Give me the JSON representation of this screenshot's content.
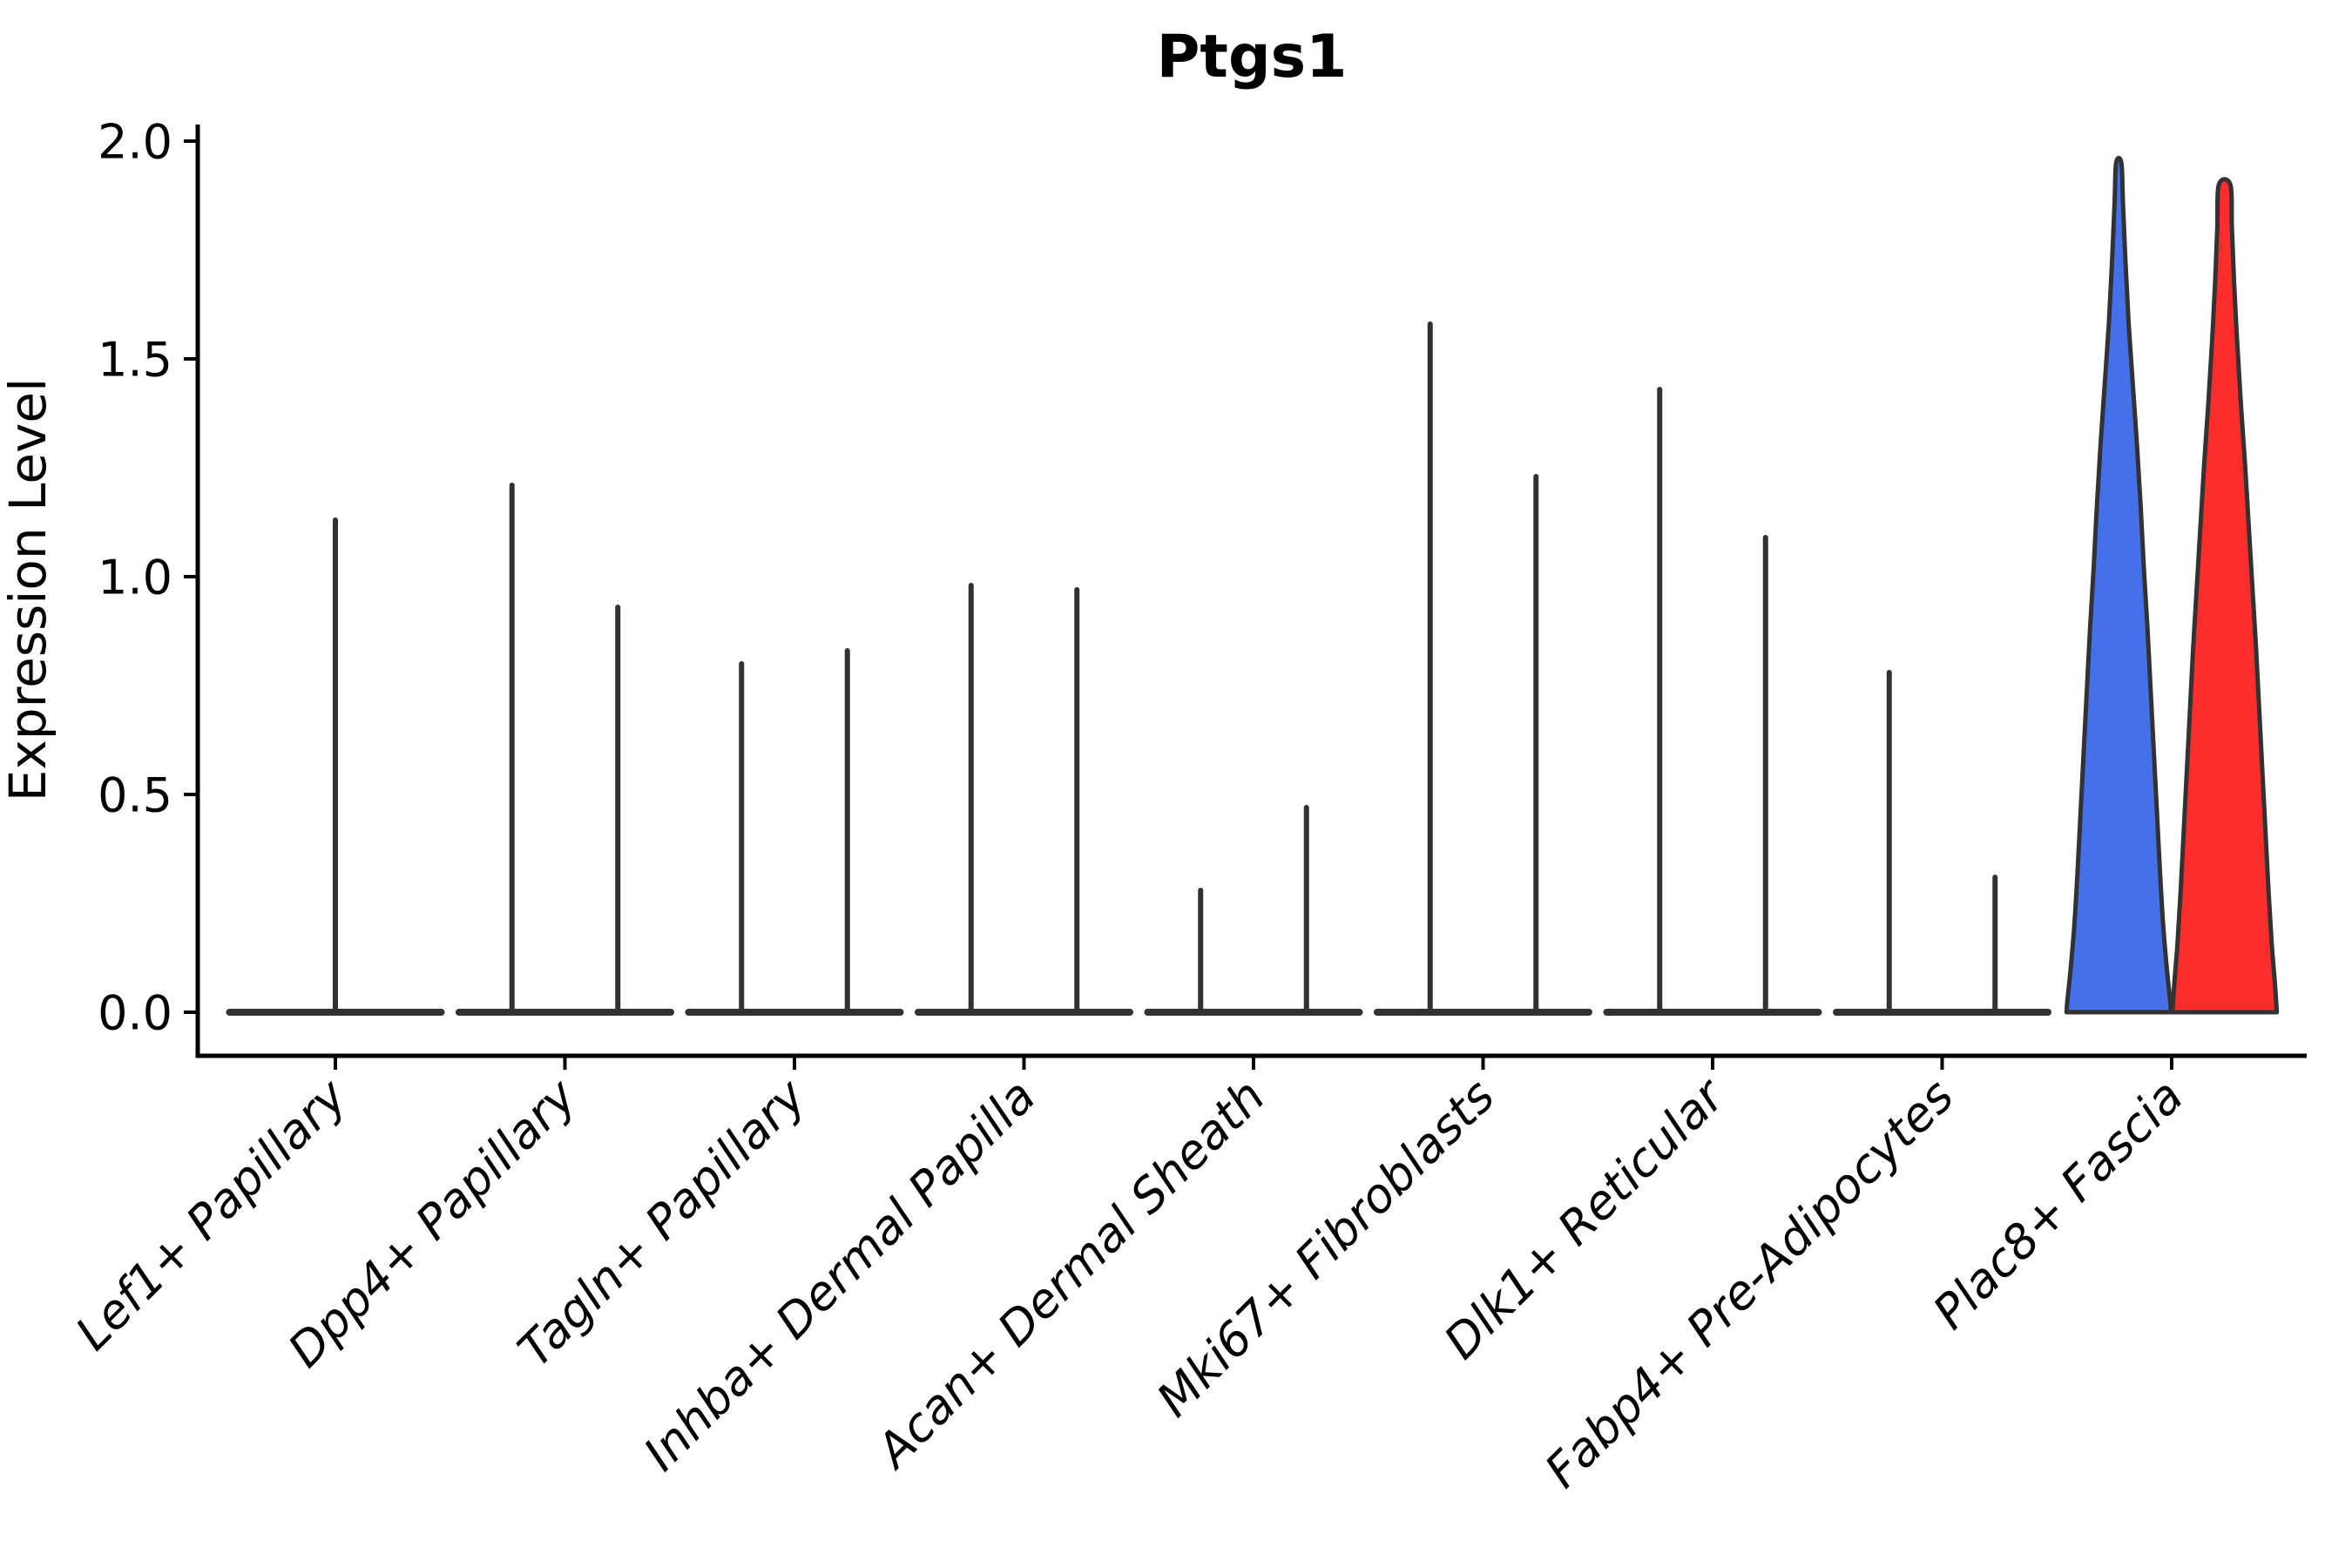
{
  "chart_data": {
    "type": "violin",
    "title": "Ptgs1",
    "ylabel": "Expression Level",
    "ylim": [
      0,
      2.0
    ],
    "yticks": [
      "0.0",
      "0.5",
      "1.0",
      "1.5",
      "2.0"
    ],
    "grid": false,
    "legend": "none",
    "x_label_rotation_deg": 45,
    "x_label_style": "italic",
    "colors": {
      "outline": "#323232",
      "axis": "#000000",
      "blue_violin": "#4470EA",
      "red_violin": "#FB2D2D"
    },
    "categories": [
      {
        "label": "Lef1+ Papillary",
        "violins": [
          {
            "position": "center",
            "shape": "collapsed",
            "peak": 1.13
          }
        ]
      },
      {
        "label": "Dpp4+ Papillary",
        "violins": [
          {
            "position": "left",
            "shape": "collapsed",
            "peak": 1.21
          },
          {
            "position": "right",
            "shape": "collapsed",
            "peak": 0.93
          }
        ]
      },
      {
        "label": "Tagln+ Papillary",
        "violins": [
          {
            "position": "left",
            "shape": "collapsed",
            "peak": 0.8
          },
          {
            "position": "right",
            "shape": "collapsed",
            "peak": 0.83
          }
        ]
      },
      {
        "label": "Inhba+ Dermal Papilla",
        "violins": [
          {
            "position": "left",
            "shape": "collapsed",
            "peak": 0.98
          },
          {
            "position": "right",
            "shape": "collapsed",
            "peak": 0.97
          }
        ]
      },
      {
        "label": "Acan+ Dermal Sheath",
        "violins": [
          {
            "position": "left",
            "shape": "collapsed",
            "peak": 0.28
          },
          {
            "position": "right",
            "shape": "collapsed",
            "peak": 0.47
          }
        ]
      },
      {
        "label": "Mki67+ Fibroblasts",
        "violins": [
          {
            "position": "left",
            "shape": "collapsed",
            "peak": 1.58
          },
          {
            "position": "right",
            "shape": "collapsed",
            "peak": 1.23
          }
        ]
      },
      {
        "label": "Dlk1+ Reticular",
        "violins": [
          {
            "position": "left",
            "shape": "collapsed",
            "peak": 1.43
          },
          {
            "position": "right",
            "shape": "collapsed",
            "peak": 1.09
          }
        ]
      },
      {
        "label": "Fabp4+ Pre-Adipocytes",
        "violins": [
          {
            "position": "left",
            "shape": "collapsed",
            "peak": 0.78
          },
          {
            "position": "right",
            "shape": "collapsed",
            "peak": 0.31
          }
        ]
      },
      {
        "label": "Plac8+ Fascia",
        "violins": [
          {
            "position": "left",
            "shape": "full",
            "peak": 1.95,
            "fill": "#4470EA",
            "profile": [
              [
                1.95,
                0.05
              ],
              [
                1.86,
                0.08
              ],
              [
                1.72,
                0.13
              ],
              [
                1.58,
                0.19
              ],
              [
                1.44,
                0.27
              ],
              [
                1.3,
                0.35
              ],
              [
                1.16,
                0.42
              ],
              [
                1.02,
                0.48
              ],
              [
                0.88,
                0.55
              ],
              [
                0.74,
                0.61
              ],
              [
                0.6,
                0.67
              ],
              [
                0.46,
                0.73
              ],
              [
                0.32,
                0.79
              ],
              [
                0.2,
                0.85
              ],
              [
                0.1,
                0.92
              ],
              [
                0.03,
                0.98
              ],
              [
                0.0,
                1.0
              ]
            ]
          },
          {
            "position": "right",
            "shape": "full",
            "peak": 1.9,
            "fill": "#FB2D2D",
            "profile": [
              [
                1.9,
                0.11
              ],
              [
                1.8,
                0.14
              ],
              [
                1.68,
                0.18
              ],
              [
                1.54,
                0.24
              ],
              [
                1.4,
                0.31
              ],
              [
                1.26,
                0.39
              ],
              [
                1.12,
                0.46
              ],
              [
                0.98,
                0.53
              ],
              [
                0.84,
                0.6
              ],
              [
                0.7,
                0.66
              ],
              [
                0.56,
                0.72
              ],
              [
                0.42,
                0.78
              ],
              [
                0.28,
                0.84
              ],
              [
                0.16,
                0.9
              ],
              [
                0.07,
                0.96
              ],
              [
                0.0,
                1.0
              ]
            ]
          }
        ]
      }
    ]
  }
}
